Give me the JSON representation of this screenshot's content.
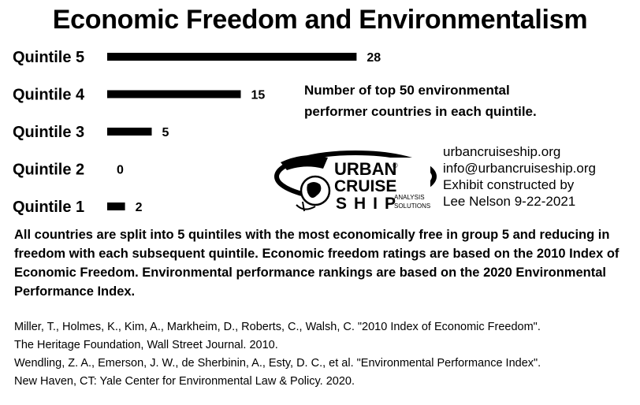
{
  "title": "Economic Freedom and Environmentalism",
  "chart_data": {
    "type": "bar",
    "orientation": "horizontal",
    "title": "Economic Freedom and Environmentalism",
    "categories": [
      "Quintile 5",
      "Quintile 4",
      "Quintile 3",
      "Quintile 2",
      "Quintile 1"
    ],
    "values": [
      28,
      15,
      5,
      0,
      2
    ],
    "bar_color": "#000000",
    "grid": false,
    "data_labels": true
  },
  "note": {
    "line1": "Number of top 50 environmental",
    "line2": "performer countries in each quintile."
  },
  "logo": {
    "line1": "URBAN",
    "line2": "CRUISE",
    "line3": "SHIP",
    "sub1": "ANALYSIS",
    "sub2": "SOLUTIONS",
    "registered": "®"
  },
  "credits": {
    "website": "urbancruiseship.org",
    "email": "info@urbancruiseship.org",
    "line3": "Exhibit constructed by",
    "line4": "Lee Nelson 9-22-2021"
  },
  "description": "All countries are split into 5 quintiles with the most economically free in group 5 and reducing in freedom with each subsequent quintile. Economic freedom ratings are based on the 2010 Index of Economic Freedom. Environmental performance rankings are based on the 2020 Environmental Performance Index.",
  "references": [
    "Miller, T., Holmes, K., Kim, A., Markheim, D., Roberts, C., Walsh, C. \"2010 Index of Economic Freedom\".",
    "The Heritage Foundation, Wall Street Journal. 2010.",
    "Wendling, Z. A., Emerson, J. W., de Sherbinin, A., Esty, D. C., et al. \"Environmental Performance Index\".",
    "New Haven, CT: Yale Center for Environmental Law & Policy. 2020."
  ]
}
